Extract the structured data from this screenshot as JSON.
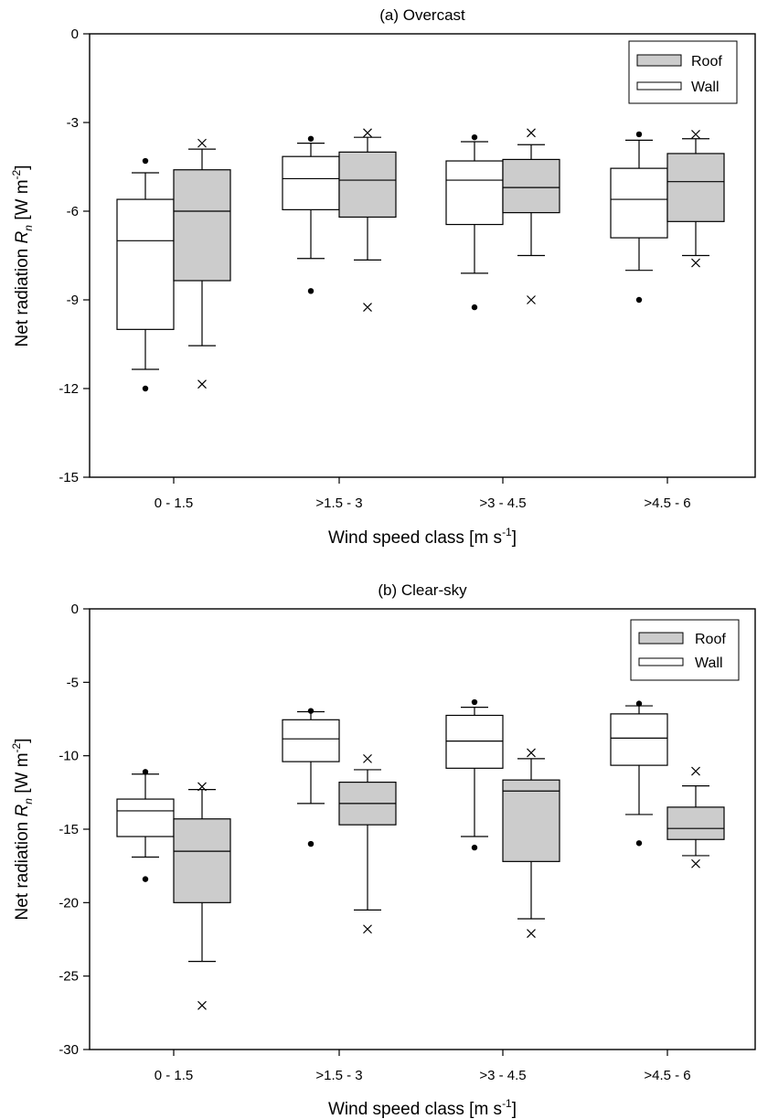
{
  "chart_data": [
    {
      "type": "box",
      "title": "(a) Overcast",
      "xlabel": {
        "main": "Wind speed class [m s",
        "sup": "-1",
        "close": "]"
      },
      "ylabel": {
        "main": "Net radiation ",
        "sym": "R",
        "sub": "n",
        "unit": " [W m",
        "sup": "-2",
        "close": "]"
      },
      "ylim": [
        -15,
        0
      ],
      "yticks": [
        0,
        -3,
        -6,
        -9,
        -12,
        -15
      ],
      "ytick_labels": [
        "0",
        "-3",
        "-6",
        "-9",
        "-12",
        "-15"
      ],
      "categories": [
        "0 - 1.5",
        ">1.5 - 3",
        ">3 - 4.5",
        ">4.5 - 6"
      ],
      "legend": {
        "placement": "top-right",
        "entries": [
          "Roof",
          "Wall"
        ]
      },
      "series": [
        {
          "name": "Wall",
          "color": "#ffffff",
          "outlier_marker": "dot",
          "boxes": [
            {
              "whislo": -11.35,
              "q1": -10.0,
              "med": -7.0,
              "q3": -5.6,
              "whishi": -4.7,
              "outliers": [
                -4.3,
                -12.0
              ]
            },
            {
              "whislo": -7.6,
              "q1": -5.95,
              "med": -4.9,
              "q3": -4.15,
              "whishi": -3.7,
              "outliers": [
                -3.55,
                -8.7
              ]
            },
            {
              "whislo": -8.1,
              "q1": -6.45,
              "med": -4.95,
              "q3": -4.3,
              "whishi": -3.65,
              "outliers": [
                -3.5,
                -9.25
              ]
            },
            {
              "whislo": -8.0,
              "q1": -6.9,
              "med": -5.6,
              "q3": -4.55,
              "whishi": -3.6,
              "outliers": [
                -3.4,
                -9.0
              ]
            }
          ]
        },
        {
          "name": "Roof",
          "color": "#cccccc",
          "outlier_marker": "x",
          "boxes": [
            {
              "whislo": -10.55,
              "q1": -8.35,
              "med": -6.0,
              "q3": -4.6,
              "whishi": -3.9,
              "outliers": [
                -3.7,
                -11.85
              ]
            },
            {
              "whislo": -7.65,
              "q1": -6.2,
              "med": -4.95,
              "q3": -4.0,
              "whishi": -3.5,
              "outliers": [
                -3.35,
                -9.25
              ]
            },
            {
              "whislo": -7.5,
              "q1": -6.05,
              "med": -5.2,
              "q3": -4.25,
              "whishi": -3.75,
              "outliers": [
                -3.35,
                -9.0
              ]
            },
            {
              "whislo": -7.5,
              "q1": -6.35,
              "med": -5.0,
              "q3": -4.05,
              "whishi": -3.55,
              "outliers": [
                -3.4,
                -7.75
              ]
            }
          ]
        }
      ]
    },
    {
      "type": "box",
      "title": "(b) Clear-sky",
      "xlabel": {
        "main": "Wind speed class [m s",
        "sup": "-1",
        "close": "]"
      },
      "ylabel": {
        "main": "Net radiation ",
        "sym": "R",
        "sub": "n",
        "unit": " [W m",
        "sup": "-2",
        "close": "]"
      },
      "ylim": [
        -30,
        0
      ],
      "yticks": [
        0,
        -5,
        -10,
        -15,
        -20,
        -25,
        -30
      ],
      "ytick_labels": [
        "0",
        "-5",
        "-10",
        "-15",
        "-20",
        "-25",
        "-30"
      ],
      "categories": [
        "0 - 1.5",
        ">1.5 - 3",
        ">3 - 4.5",
        ">4.5 - 6"
      ],
      "legend": {
        "placement": "top-right",
        "entries": [
          "Roof",
          "Wall"
        ]
      },
      "series": [
        {
          "name": "Wall",
          "color": "#ffffff",
          "outlier_marker": "dot",
          "boxes": [
            {
              "whislo": -16.9,
              "q1": -15.5,
              "med": -13.75,
              "q3": -12.95,
              "whishi": -11.25,
              "outliers": [
                -11.1,
                -18.4
              ]
            },
            {
              "whislo": -13.25,
              "q1": -10.4,
              "med": -8.85,
              "q3": -7.55,
              "whishi": -7.0,
              "outliers": [
                -6.95,
                -16.0
              ]
            },
            {
              "whislo": -15.5,
              "q1": -10.85,
              "med": -9.0,
              "q3": -7.25,
              "whishi": -6.7,
              "outliers": [
                -6.35,
                -16.25
              ]
            },
            {
              "whislo": -14.0,
              "q1": -10.65,
              "med": -8.8,
              "q3": -7.15,
              "whishi": -6.6,
              "outliers": [
                -6.45,
                -15.95
              ]
            }
          ]
        },
        {
          "name": "Roof",
          "color": "#cccccc",
          "outlier_marker": "x",
          "boxes": [
            {
              "whislo": -24.0,
              "q1": -20.0,
              "med": -16.5,
              "q3": -14.3,
              "whishi": -12.3,
              "outliers": [
                -12.1,
                -27.0
              ]
            },
            {
              "whislo": -20.5,
              "q1": -14.7,
              "med": -13.25,
              "q3": -11.8,
              "whishi": -10.95,
              "outliers": [
                -10.2,
                -21.8
              ]
            },
            {
              "whislo": -21.1,
              "q1": -17.2,
              "med": -12.4,
              "q3": -11.65,
              "whishi": -10.2,
              "outliers": [
                -9.8,
                -22.1
              ]
            },
            {
              "whislo": -16.8,
              "q1": -15.7,
              "med": -14.95,
              "q3": -13.5,
              "whishi": -12.05,
              "outliers": [
                -11.05,
                -17.35
              ]
            }
          ]
        }
      ]
    }
  ]
}
